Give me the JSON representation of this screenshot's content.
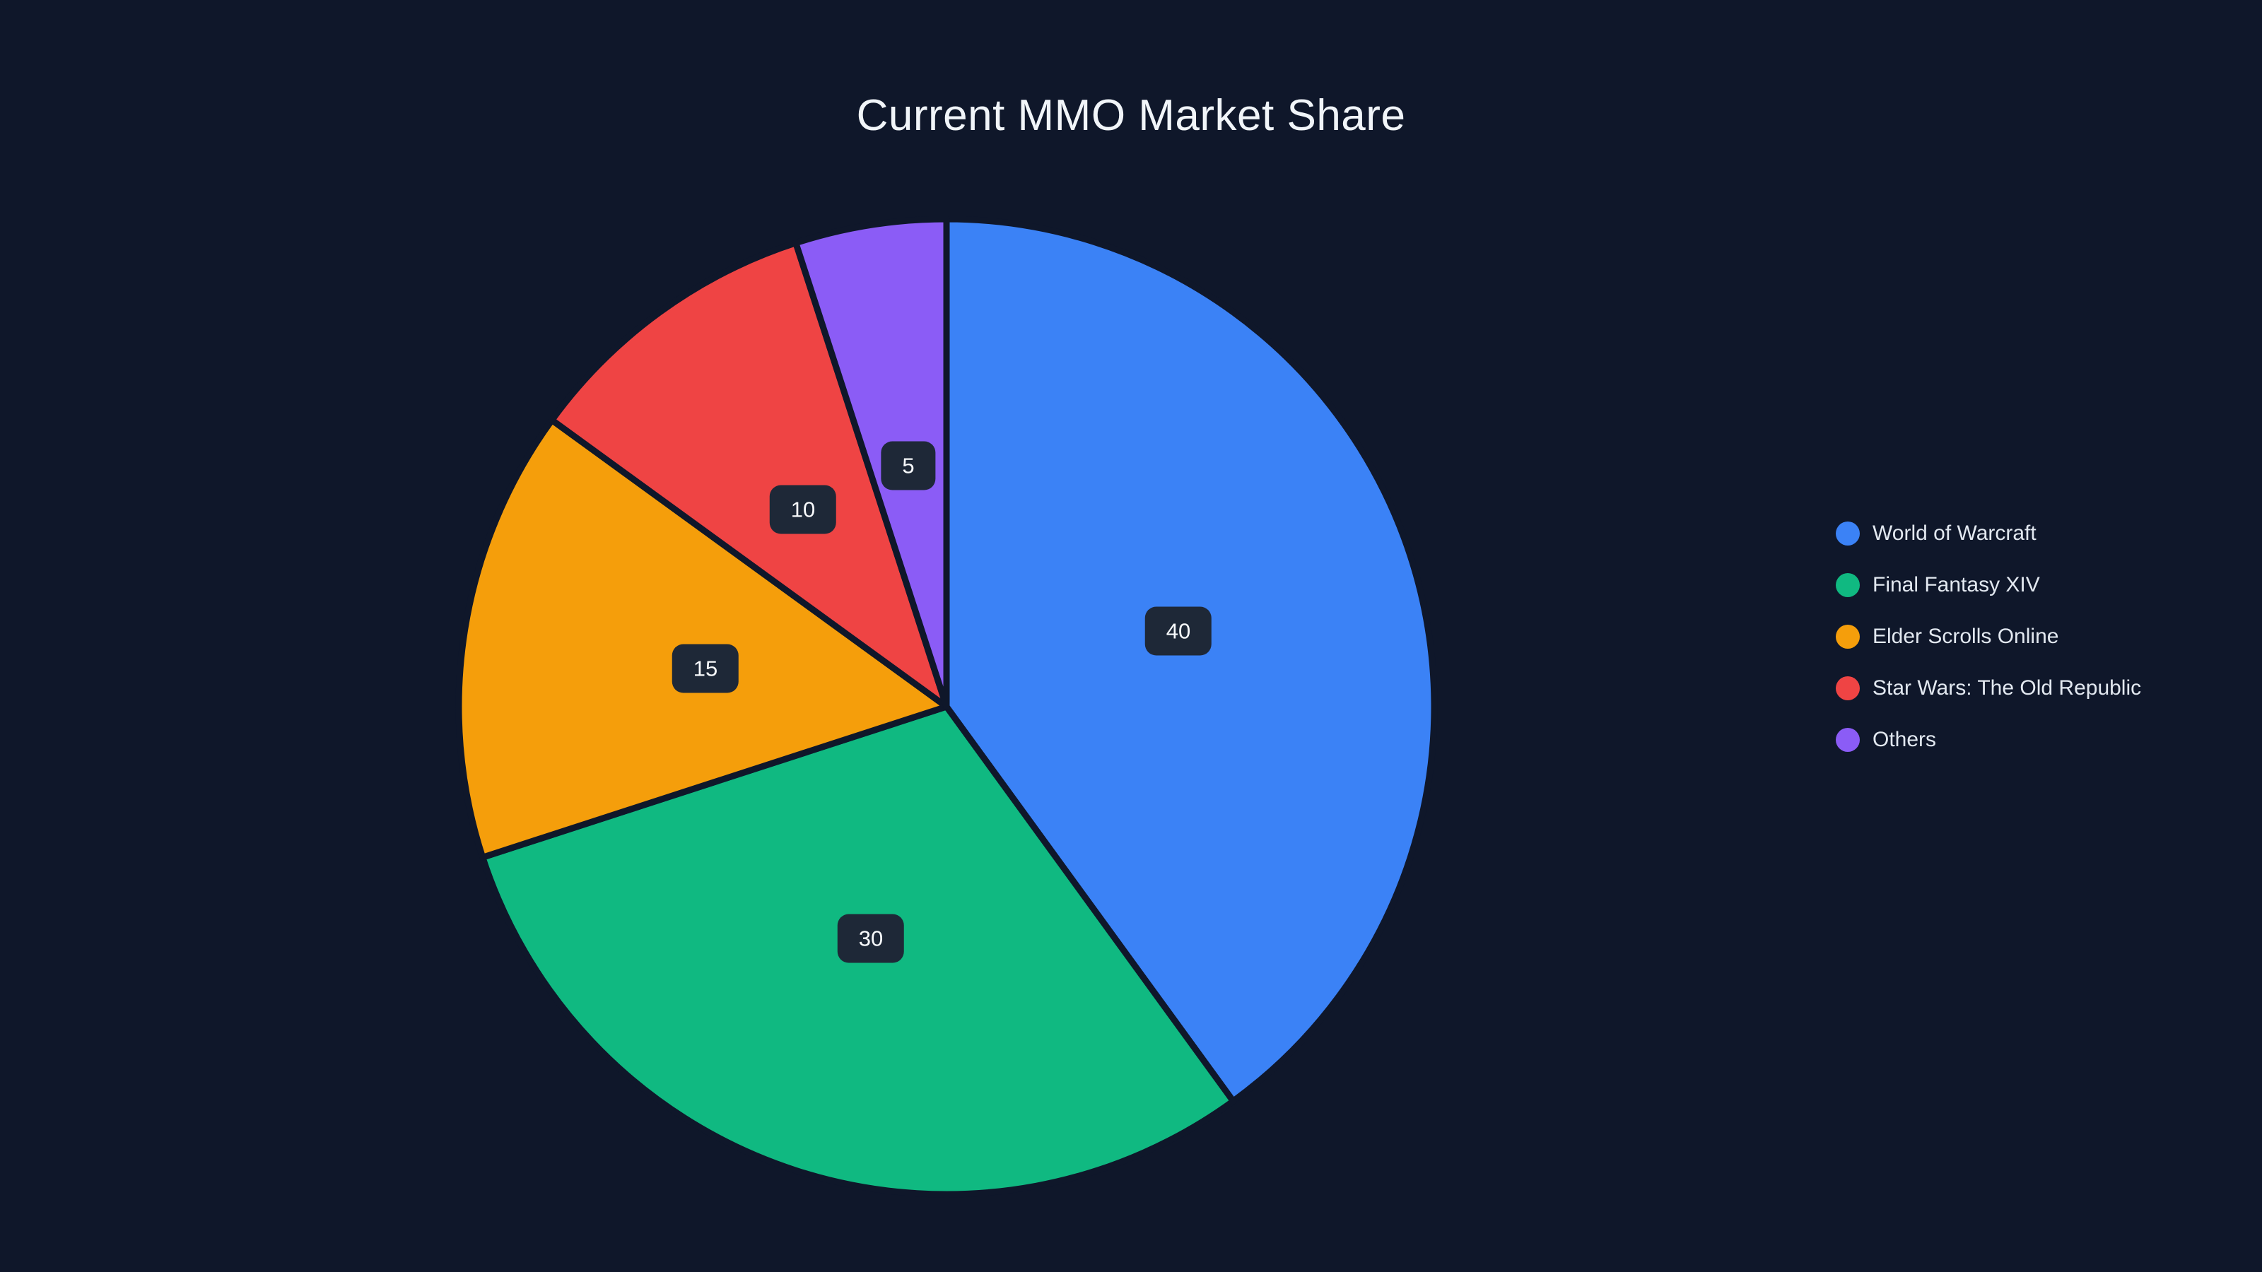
{
  "theme": {
    "background": "#0f172a",
    "title_color": "#f1f5f9",
    "legend_text_color": "#e2e8f0",
    "label_pill_bg": "#1e2837",
    "label_text_color": "#f8fafc"
  },
  "chart_data": {
    "type": "pie",
    "title": "Current MMO Market Share",
    "categories": [
      "World of Warcraft",
      "Final Fantasy XIV",
      "Elder Scrolls Online",
      "Star Wars: The Old Republic",
      "Others"
    ],
    "values": [
      40,
      30,
      15,
      10,
      5
    ],
    "colors": [
      "#3b82f6",
      "#10b981",
      "#f59e0b",
      "#ef4444",
      "#8b5cf6"
    ],
    "start_angle_deg": 0,
    "direction": "clockwise",
    "legend_position": "right",
    "labels": "value-in-dark-pill",
    "slice_gap": true
  }
}
